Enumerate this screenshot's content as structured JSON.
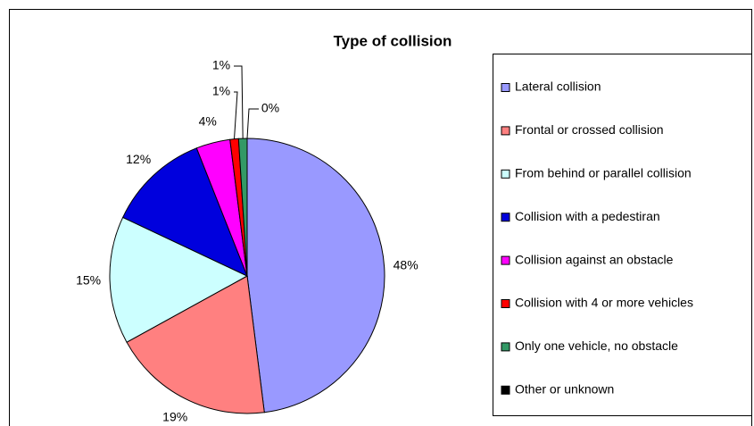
{
  "chart_data": {
    "type": "pie",
    "title": "Type of collision",
    "categories": [
      "Lateral collision",
      "Frontal or crossed collision",
      "From behind or parallel collision",
      "Collision with a pedestiran",
      "Collision against an obstacle",
      "Collision with 4 or more vehicles",
      "Only one vehicle, no obstacle",
      "Other or unknown"
    ],
    "values": [
      48,
      19,
      15,
      12,
      4,
      1,
      1,
      0
    ],
    "value_labels": [
      "48%",
      "19%",
      "15%",
      "12%",
      "4%",
      "1%",
      "1%",
      "0%"
    ],
    "colors": [
      "#9999ff",
      "#ff8080",
      "#ccffff",
      "#0000dd",
      "#ff00ff",
      "#ff0000",
      "#339966",
      "#000000"
    ],
    "legend": "right"
  }
}
